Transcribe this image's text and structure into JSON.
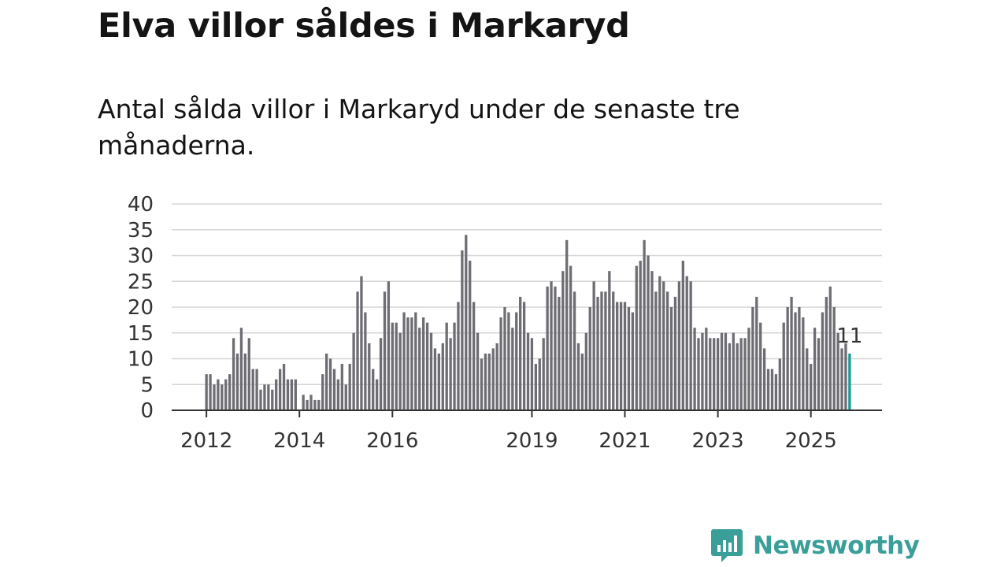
{
  "header": {
    "title": "Elva villor såldes i Markaryd",
    "subtitle": "Antal sålda villor i Markaryd under de senaste tre månaderna."
  },
  "brand": {
    "name": "Newsworthy",
    "color": "#3a9e99"
  },
  "chart_data": {
    "type": "bar",
    "title": "Elva villor såldes i Markaryd",
    "subtitle": "Antal sålda villor i Markaryd under de senaste tre månaderna.",
    "xlabel": "",
    "ylabel": "",
    "ylim": [
      0,
      40
    ],
    "yticks": [
      0,
      5,
      10,
      15,
      20,
      25,
      30,
      35,
      40
    ],
    "xticks": [
      {
        "label": "2012",
        "index": 0
      },
      {
        "label": "2014",
        "index": 24
      },
      {
        "label": "2016",
        "index": 48
      },
      {
        "label": "2019",
        "index": 84
      },
      {
        "label": "2021",
        "index": 108
      },
      {
        "label": "2023",
        "index": 132
      },
      {
        "label": "2025",
        "index": 156
      }
    ],
    "grid": true,
    "bar_color": "#6e6d73",
    "highlight_color": "#1a9a93",
    "highlight_label": "11",
    "values": [
      7,
      7,
      5,
      6,
      5,
      6,
      7,
      14,
      11,
      16,
      11,
      14,
      8,
      8,
      4,
      5,
      5,
      4,
      6,
      8,
      9,
      6,
      6,
      6,
      0,
      3,
      2,
      3,
      2,
      2,
      7,
      11,
      10,
      8,
      6,
      9,
      5,
      9,
      15,
      23,
      26,
      19,
      13,
      8,
      6,
      14,
      23,
      25,
      17,
      17,
      15,
      19,
      18,
      18,
      19,
      16,
      18,
      17,
      15,
      12,
      11,
      13,
      17,
      14,
      17,
      21,
      31,
      34,
      29,
      21,
      15,
      10,
      11,
      11,
      12,
      13,
      18,
      20,
      19,
      16,
      19,
      22,
      21,
      15,
      14,
      9,
      10,
      14,
      24,
      25,
      24,
      22,
      27,
      33,
      28,
      23,
      13,
      11,
      15,
      20,
      25,
      22,
      23,
      23,
      27,
      23,
      21,
      21,
      21,
      20,
      19,
      28,
      29,
      33,
      30,
      27,
      23,
      26,
      25,
      23,
      20,
      22,
      25,
      29,
      26,
      25,
      16,
      14,
      15,
      16,
      14,
      14,
      14,
      15,
      15,
      13,
      15,
      13,
      14,
      14,
      16,
      20,
      22,
      17,
      12,
      8,
      8,
      7,
      10,
      17,
      20,
      22,
      19,
      20,
      18,
      12,
      9,
      16,
      14,
      19,
      22,
      24,
      20,
      15,
      12,
      13,
      11
    ]
  }
}
